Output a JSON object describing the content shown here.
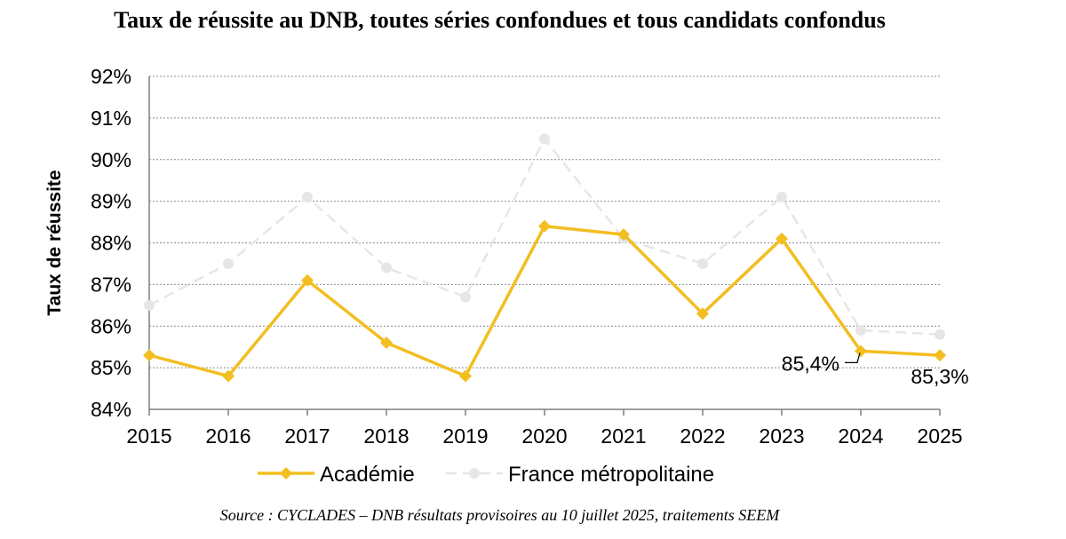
{
  "chart_data": {
    "type": "line",
    "title": "Taux de réussite au DNB, toutes séries confondues et tous candidats confondus",
    "ylabel": "Taux de réussite",
    "xlabel": "",
    "categories": [
      "2015",
      "2016",
      "2017",
      "2018",
      "2019",
      "2020",
      "2021",
      "2022",
      "2023",
      "2024",
      "2025"
    ],
    "ylim": [
      84,
      92
    ],
    "yticks": [
      84,
      85,
      86,
      87,
      88,
      89,
      90,
      91,
      92
    ],
    "ytick_labels": [
      "84%",
      "85%",
      "86%",
      "87%",
      "88%",
      "89%",
      "90%",
      "91%",
      "92%"
    ],
    "grid": true,
    "legend_position": "bottom",
    "series": [
      {
        "name": "Académie",
        "color": "#F2BE22",
        "marker": "diamond",
        "values": [
          85.3,
          84.8,
          87.1,
          85.6,
          84.8,
          88.4,
          88.2,
          86.3,
          88.1,
          85.4,
          85.3
        ]
      },
      {
        "name": "France métropolitaine",
        "color": "#E6E6E6",
        "marker": "circle",
        "dashed": true,
        "values": [
          86.5,
          87.5,
          89.1,
          87.4,
          86.7,
          90.5,
          88.1,
          87.5,
          89.1,
          85.9,
          85.8
        ]
      }
    ],
    "data_labels": [
      {
        "series": "Académie",
        "category": "2024",
        "text": "85,4%"
      },
      {
        "series": "Académie",
        "category": "2025",
        "text": "85,3%"
      }
    ],
    "source": "Source : CYCLADES – DNB résultats provisoires au 10 juillet 2025, traitements SEEM"
  }
}
